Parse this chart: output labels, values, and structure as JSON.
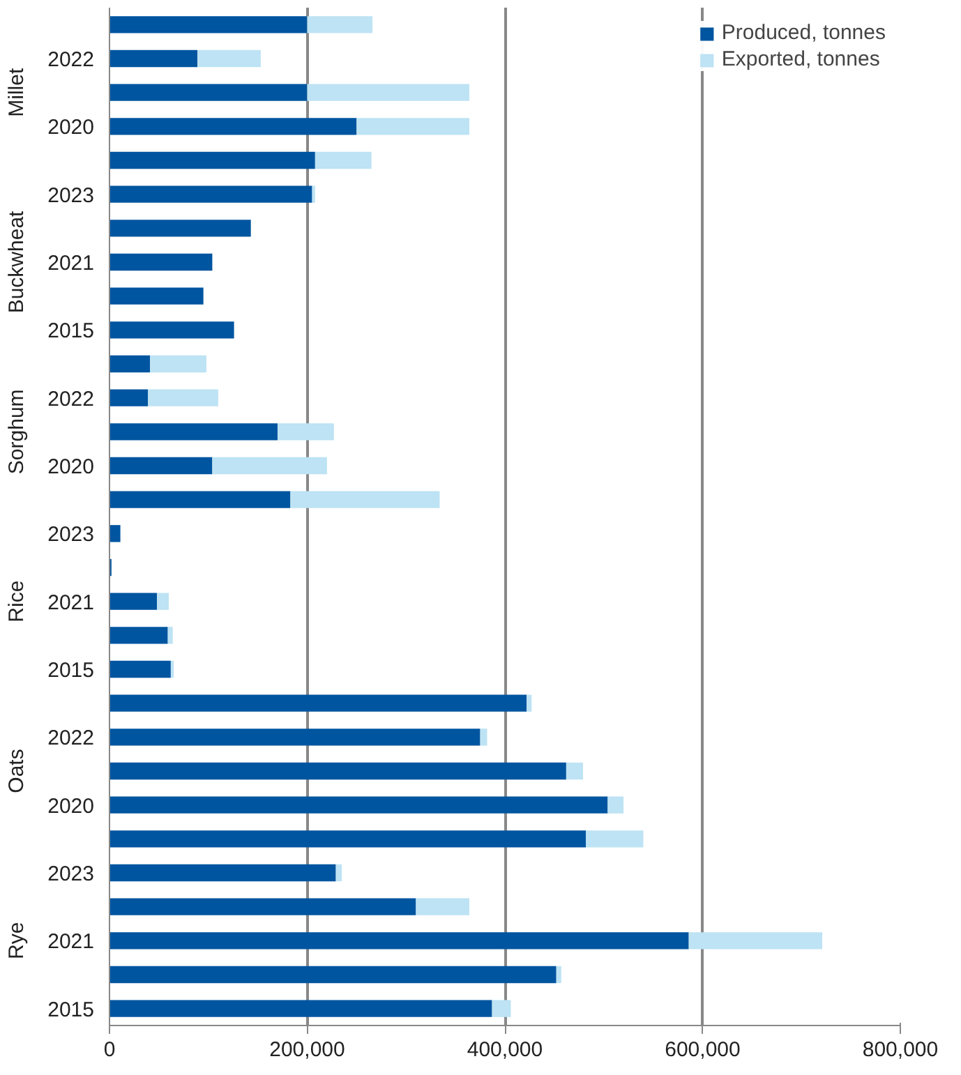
{
  "chart_data": {
    "type": "bar",
    "orientation": "horizontal",
    "stacked": true,
    "categories": [
      null,
      "2022",
      null,
      "2020",
      null,
      "2023",
      null,
      "2021",
      null,
      "2015",
      null,
      "2022",
      null,
      "2020",
      null,
      "2023",
      null,
      "2021",
      null,
      "2015",
      null,
      "2022",
      null,
      "2020",
      null,
      "2023",
      null,
      "2021",
      null,
      "2015"
    ],
    "series": [
      {
        "name": "Produced, tonnes",
        "color": "#0055a0",
        "values": [
          200000,
          89000,
          200000,
          250000,
          208000,
          205000,
          143000,
          104000,
          95000,
          126000,
          41000,
          39000,
          170000,
          104000,
          183000,
          11000,
          2000,
          48000,
          59000,
          62000,
          422000,
          375000,
          462000,
          504000,
          482000,
          229000,
          310000,
          586000,
          452000,
          387000
        ]
      },
      {
        "name": "Exported, tonnes",
        "color": "#bde3f4",
        "values": [
          66000,
          64000,
          164000,
          114000,
          57000,
          3000,
          0,
          0,
          0,
          0,
          57000,
          71000,
          57000,
          116000,
          151000,
          0,
          0,
          12000,
          5000,
          3000,
          5000,
          7000,
          17000,
          16000,
          58000,
          6000,
          54000,
          135000,
          5000,
          19000
        ]
      }
    ],
    "xlim": [
      0,
      800000
    ],
    "xticks": [
      0,
      {
        "value": 200000,
        "label": "200,000"
      },
      {
        "value": 400000,
        "label": "400,000"
      },
      {
        "value": 600000,
        "label": "600,000"
      },
      {
        "value": 800000,
        "label": "800,000"
      }
    ],
    "grid": "x",
    "legend": "top",
    "annotations": [
      "Millet",
      "Buckwheat",
      "Sorghum",
      "Rice",
      "Oats",
      "Rye"
    ]
  }
}
